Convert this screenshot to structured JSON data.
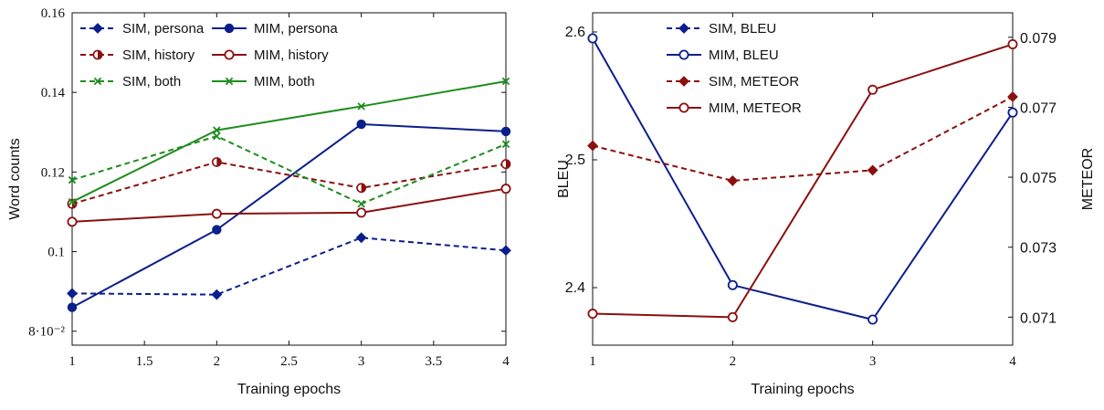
{
  "chart_data": [
    {
      "type": "line",
      "xlabel": "Training epochs",
      "ylabel": "Word counts",
      "xlim": [
        1,
        4
      ],
      "ylim": [
        0.0765,
        0.16
      ],
      "xticks": [
        1,
        1.5,
        2,
        2.5,
        3,
        3.5,
        4
      ],
      "xtick_labels": [
        "1",
        "1.5",
        "2",
        "2.5",
        "3",
        "3.5",
        "4"
      ],
      "yticks": [
        0.08,
        0.1,
        0.12,
        0.14,
        0.16
      ],
      "ytick_labels": [
        "8·10⁻²",
        "0.1",
        "0.12",
        "0.14",
        "0.16"
      ],
      "legend_position": "top-left",
      "series": [
        {
          "name": "SIM, persona",
          "x": [
            1,
            2,
            3,
            4
          ],
          "values": [
            0.0895,
            0.0892,
            0.1035,
            0.1003
          ],
          "color": "#0b1f8c",
          "dash": true,
          "marker": "diamond"
        },
        {
          "name": "MIM, persona",
          "x": [
            1,
            2,
            3,
            4
          ],
          "values": [
            0.086,
            0.1055,
            0.132,
            0.1302
          ],
          "color": "#0b1f8c",
          "dash": false,
          "marker": "circle"
        },
        {
          "name": "SIM, history",
          "x": [
            1,
            2,
            3,
            4
          ],
          "values": [
            0.112,
            0.1225,
            0.116,
            0.122
          ],
          "color": "#8b1010",
          "dash": true,
          "marker": "halfcircle"
        },
        {
          "name": "MIM, history",
          "x": [
            1,
            2,
            3,
            4
          ],
          "values": [
            0.1075,
            0.1095,
            0.1098,
            0.1158
          ],
          "color": "#8b1010",
          "dash": false,
          "marker": "ocircle"
        },
        {
          "name": "SIM, both",
          "x": [
            1,
            2,
            3,
            4
          ],
          "values": [
            0.118,
            0.129,
            0.112,
            0.127
          ],
          "color": "#1e8c1e",
          "dash": true,
          "marker": "x"
        },
        {
          "name": "MIM, both",
          "x": [
            1,
            2,
            3,
            4
          ],
          "values": [
            0.1125,
            0.1305,
            0.1365,
            0.1428
          ],
          "color": "#1e8c1e",
          "dash": false,
          "marker": "x"
        }
      ]
    },
    {
      "type": "line",
      "xlabel": "Training epochs",
      "ylabel": "BLEU",
      "y2label": "METEOR",
      "xlim": [
        1,
        4
      ],
      "ylim": [
        2.355,
        2.615
      ],
      "y2lim": [
        0.0702,
        0.0797
      ],
      "xticks": [
        1,
        2,
        3,
        4
      ],
      "xtick_labels": [
        "1",
        "2",
        "3",
        "4"
      ],
      "yticks": [
        2.4,
        2.5,
        2.6
      ],
      "ytick_labels": [
        "2.4",
        "2.5",
        "2.6"
      ],
      "y2ticks": [
        0.071,
        0.073,
        0.075,
        0.077,
        0.079
      ],
      "y2tick_labels": [
        "0.071",
        "0.073",
        "0.075",
        "0.077",
        "0.079"
      ],
      "legend_position": "top-center",
      "series": [
        {
          "name": "SIM, BLEU",
          "axis": "left",
          "x": [
            1,
            2,
            3,
            4
          ],
          "values": [
            null,
            null,
            null,
            null
          ],
          "color": "#0b1f8c",
          "dash": true,
          "marker": "diamond"
        },
        {
          "name": "MIM, BLEU",
          "axis": "left",
          "x": [
            1,
            2,
            3,
            4
          ],
          "values": [
            2.595,
            2.402,
            2.375,
            2.537
          ],
          "color": "#0b1f8c",
          "dash": false,
          "marker": "ocircle"
        },
        {
          "name": "SIM, METEOR",
          "axis": "right",
          "x": [
            1,
            2,
            3,
            4
          ],
          "values": [
            0.0759,
            0.0749,
            0.0752,
            0.0773
          ],
          "color": "#8b1010",
          "dash": true,
          "marker": "diamond"
        },
        {
          "name": "MIM, METEOR",
          "axis": "right",
          "x": [
            1,
            2,
            3,
            4
          ],
          "values": [
            0.0711,
            0.071,
            0.0775,
            0.0788
          ],
          "color": "#8b1010",
          "dash": false,
          "marker": "ocircle"
        }
      ]
    }
  ]
}
